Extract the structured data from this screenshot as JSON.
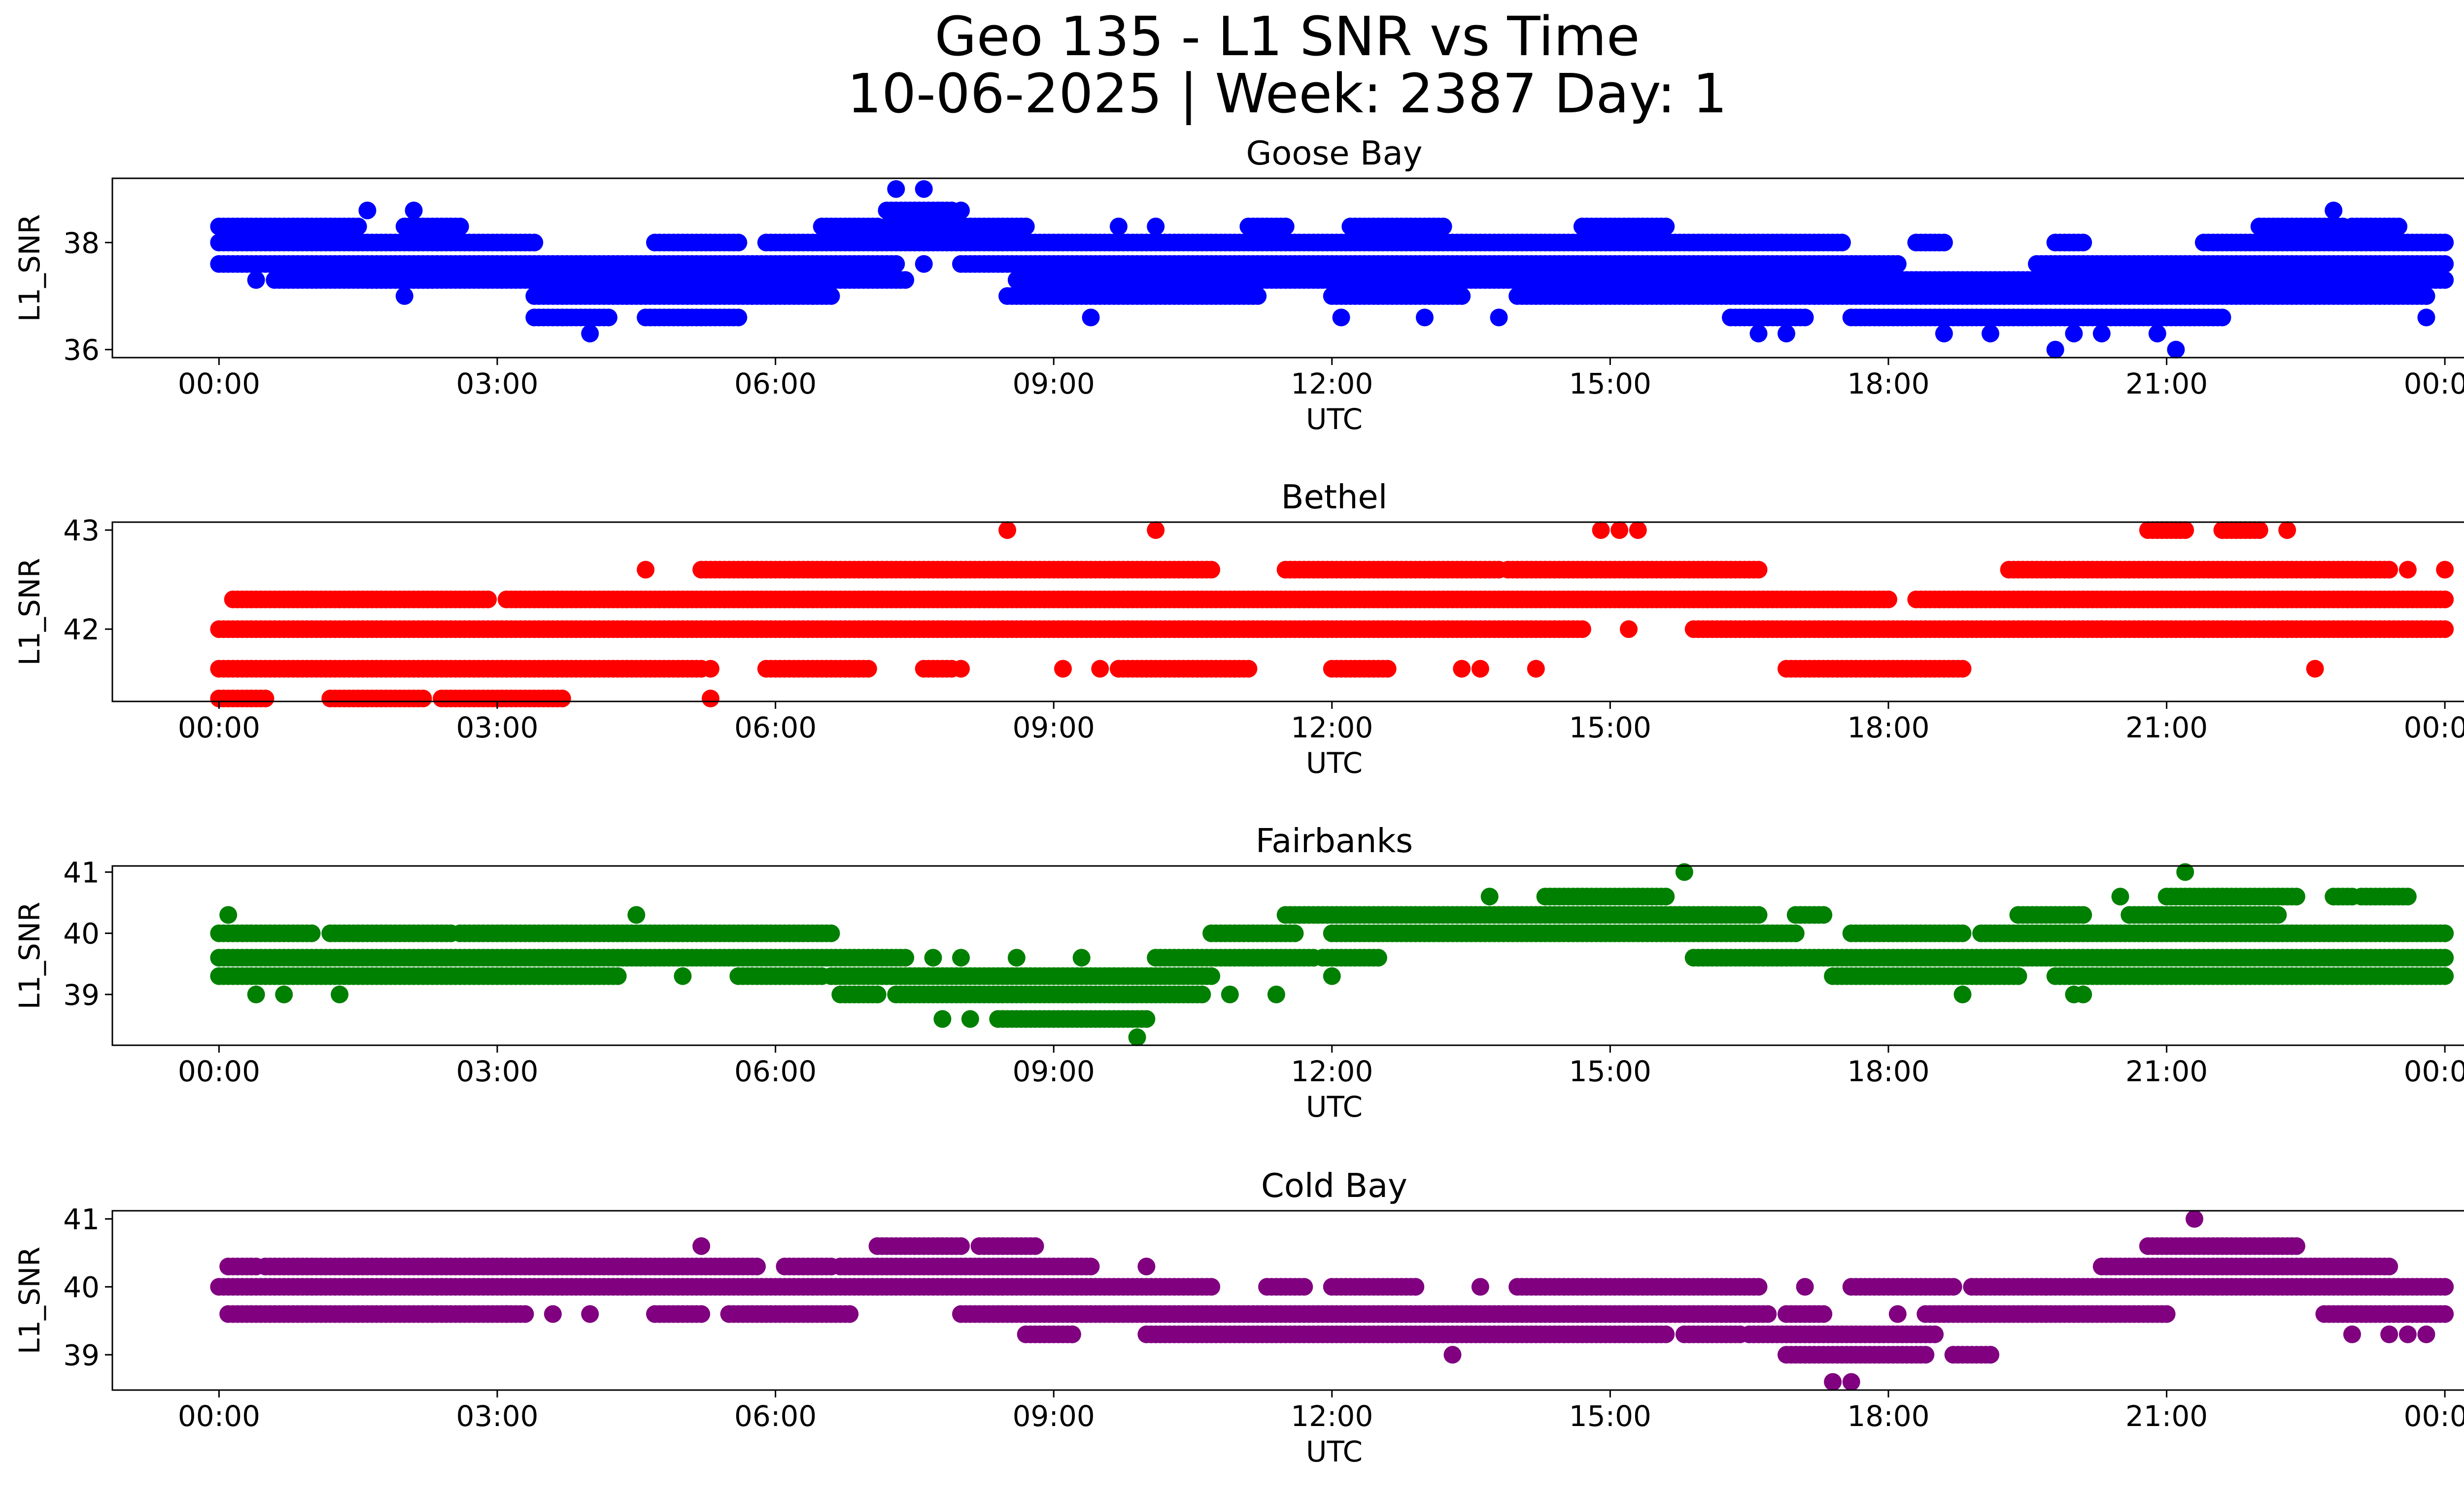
{
  "figure": {
    "title_line1": "Geo 135 - L1 SNR vs Time",
    "title_line2": "10-06-2025 | Week: 2387 Day: 1"
  },
  "chart_data": [
    {
      "type": "scatter",
      "title": "Goose Bay",
      "xlabel": "UTC",
      "ylabel": "L1_SNR",
      "color": "#0000ff",
      "xlim": [
        -1.15,
        25.2
      ],
      "ylim": [
        35.85,
        39.2
      ],
      "xticks": [
        "00:00",
        "03:00",
        "06:00",
        "09:00",
        "12:00",
        "15:00",
        "18:00",
        "21:00",
        "00:00"
      ],
      "yticks": [
        36,
        38
      ],
      "bands": [
        {
          "y": 38.0,
          "ranges": [
            [
              0,
              3.4
            ],
            [
              4.7,
              5.6
            ],
            [
              5.9,
              17.5
            ],
            [
              18.3,
              18.6
            ],
            [
              19.8,
              20.1
            ],
            [
              21.4,
              24
            ]
          ]
        },
        {
          "y": 37.6,
          "ranges": [
            [
              0,
              3.9
            ],
            [
              3.9,
              7.3
            ],
            [
              8.0,
              18.1
            ],
            [
              19.6,
              24
            ]
          ]
        },
        {
          "y": 37.3,
          "ranges": [
            [
              0.6,
              2.3
            ],
            [
              1.6,
              7.4
            ],
            [
              8.6,
              24
            ]
          ]
        },
        {
          "y": 37.0,
          "ranges": [
            [
              3.4,
              6.6
            ],
            [
              8.5,
              11.2
            ],
            [
              12.0,
              13.4
            ],
            [
              14.0,
              23.8
            ]
          ]
        },
        {
          "y": 36.6,
          "ranges": [
            [
              3.4,
              4.2
            ],
            [
              4.6,
              5.6
            ],
            [
              16.3,
              17.1
            ],
            [
              17.6,
              21.6
            ]
          ]
        },
        {
          "y": 38.3,
          "ranges": [
            [
              0,
              1.5
            ],
            [
              2.0,
              2.6
            ],
            [
              6.5,
              7.1
            ],
            [
              7.2,
              8.7
            ],
            [
              11.1,
              11.5
            ],
            [
              12.2,
              13.2
            ],
            [
              14.7,
              15.6
            ],
            [
              22.0,
              22.9
            ],
            [
              23.0,
              23.5
            ]
          ]
        },
        {
          "y": 38.6,
          "ranges": [
            [
              7.2,
              7.9
            ]
          ]
        }
      ],
      "points": [
        [
          1.6,
          38.6
        ],
        [
          2.1,
          38.6
        ],
        [
          7.3,
          39.0
        ],
        [
          7.6,
          39.0
        ],
        [
          8.0,
          38.6
        ],
        [
          22.8,
          38.6
        ],
        [
          0.4,
          37.3
        ],
        [
          2.0,
          37.0
        ],
        [
          4.0,
          36.3
        ],
        [
          6.6,
          37.3
        ],
        [
          7.6,
          37.6
        ],
        [
          9.4,
          36.6
        ],
        [
          10.1,
          38.3
        ],
        [
          9.7,
          38.3
        ],
        [
          12.1,
          36.6
        ],
        [
          13.0,
          36.6
        ],
        [
          13.8,
          36.6
        ],
        [
          16.6,
          36.3
        ],
        [
          16.9,
          36.3
        ],
        [
          18.6,
          36.3
        ],
        [
          19.1,
          36.3
        ],
        [
          19.8,
          36.0
        ],
        [
          20.0,
          36.3
        ],
        [
          20.3,
          36.3
        ],
        [
          20.9,
          36.3
        ],
        [
          21.1,
          36.0
        ],
        [
          23.8,
          36.6
        ],
        [
          23.8,
          37.0
        ]
      ]
    },
    {
      "type": "scatter",
      "title": "Bethel",
      "xlabel": "UTC",
      "ylabel": "L1_SNR",
      "color": "#ff0000",
      "xlim": [
        -1.15,
        25.2
      ],
      "ylim": [
        41.27,
        43.08
      ],
      "xticks": [
        "00:00",
        "03:00",
        "06:00",
        "09:00",
        "12:00",
        "15:00",
        "18:00",
        "21:00",
        "00:00"
      ],
      "yticks": [
        42,
        43
      ],
      "bands": [
        {
          "y": 42.0,
          "ranges": [
            [
              0,
              14.7
            ],
            [
              15.9,
              24
            ]
          ]
        },
        {
          "y": 42.3,
          "ranges": [
            [
              0.15,
              2.9
            ],
            [
              3.1,
              18.0
            ],
            [
              18.3,
              24
            ]
          ]
        },
        {
          "y": 42.6,
          "ranges": [
            [
              5.2,
              10.7
            ],
            [
              11.5,
              13.8
            ],
            [
              13.9,
              16.6
            ],
            [
              19.3,
              23.4
            ]
          ]
        },
        {
          "y": 41.6,
          "ranges": [
            [
              0,
              5.2
            ],
            [
              5.9,
              7.0
            ],
            [
              7.6,
              7.9
            ],
            [
              9.7,
              11.1
            ],
            [
              12.0,
              12.6
            ],
            [
              16.9,
              18.8
            ]
          ]
        },
        {
          "y": 41.3,
          "ranges": [
            [
              0,
              0.5
            ],
            [
              1.2,
              2.2
            ],
            [
              2.4,
              3.7
            ]
          ]
        },
        {
          "y": 43.0,
          "ranges": [
            [
              20.8,
              21.2
            ],
            [
              21.6,
              22.0
            ]
          ]
        }
      ],
      "points": [
        [
          8.5,
          43.0
        ],
        [
          10.1,
          43.0
        ],
        [
          14.9,
          43.0
        ],
        [
          15.1,
          43.0
        ],
        [
          15.3,
          43.0
        ],
        [
          22.3,
          43.0
        ],
        [
          4.6,
          42.6
        ],
        [
          23.6,
          42.6
        ],
        [
          24.0,
          42.6
        ],
        [
          5.3,
          41.3
        ],
        [
          5.3,
          41.6
        ],
        [
          8.0,
          41.6
        ],
        [
          9.1,
          41.6
        ],
        [
          9.5,
          41.6
        ],
        [
          13.4,
          41.6
        ],
        [
          14.2,
          41.6
        ],
        [
          13.6,
          41.6
        ],
        [
          22.6,
          41.6
        ],
        [
          15.2,
          42.0
        ],
        [
          20.3,
          42.0
        ],
        [
          21.4,
          42.0
        ],
        [
          22.3,
          42.0
        ]
      ]
    },
    {
      "type": "scatter",
      "title": "Fairbanks",
      "xlabel": "UTC",
      "ylabel": "L1_SNR",
      "color": "#008000",
      "xlim": [
        -1.15,
        25.2
      ],
      "ylim": [
        38.17,
        41.1
      ],
      "xticks": [
        "00:00",
        "03:00",
        "06:00",
        "09:00",
        "12:00",
        "15:00",
        "18:00",
        "21:00",
        "00:00"
      ],
      "yticks": [
        39,
        40,
        41
      ],
      "bands": [
        {
          "y": 40.0,
          "ranges": [
            [
              0,
              1.0
            ],
            [
              1.2,
              2.5
            ],
            [
              2.6,
              6.6
            ],
            [
              10.7,
              11.6
            ],
            [
              12.0,
              17.0
            ],
            [
              17.6,
              18.8
            ],
            [
              19.0,
              24
            ]
          ]
        },
        {
          "y": 39.6,
          "ranges": [
            [
              0,
              7.4
            ],
            [
              10.1,
              11.8
            ],
            [
              11.9,
              12.5
            ],
            [
              15.9,
              24
            ]
          ]
        },
        {
          "y": 39.3,
          "ranges": [
            [
              0,
              4.3
            ],
            [
              5.6,
              6.5
            ],
            [
              6.6,
              10.7
            ],
            [
              17.4,
              19.4
            ],
            [
              19.8,
              24
            ]
          ]
        },
        {
          "y": 40.3,
          "ranges": [
            [
              11.5,
              16.6
            ],
            [
              17.0,
              17.3
            ],
            [
              19.4,
              20.1
            ],
            [
              20.6,
              22.2
            ]
          ]
        },
        {
          "y": 40.6,
          "ranges": [
            [
              14.3,
              15.6
            ],
            [
              21.0,
              22.4
            ],
            [
              22.8,
              23.0
            ],
            [
              23.1,
              23.6
            ]
          ]
        },
        {
          "y": 39.0,
          "ranges": [
            [
              6.7,
              7.1
            ],
            [
              7.3,
              10.6
            ]
          ]
        },
        {
          "y": 38.6,
          "ranges": [
            [
              8.4,
              10.0
            ]
          ]
        }
      ],
      "points": [
        [
          0.1,
          40.3
        ],
        [
          4.5,
          40.3
        ],
        [
          15.8,
          41.0
        ],
        [
          21.2,
          41.0
        ],
        [
          0.4,
          39.0
        ],
        [
          0.7,
          39.0
        ],
        [
          1.3,
          39.0
        ],
        [
          5.0,
          39.3
        ],
        [
          7.8,
          38.6
        ],
        [
          8.1,
          38.6
        ],
        [
          9.9,
          38.3
        ],
        [
          10.9,
          39.0
        ],
        [
          11.4,
          39.0
        ],
        [
          12.0,
          39.3
        ],
        [
          13.7,
          40.6
        ],
        [
          18.8,
          39.0
        ],
        [
          20.0,
          39.0
        ],
        [
          20.1,
          39.0
        ],
        [
          20.5,
          40.6
        ],
        [
          7.7,
          39.6
        ],
        [
          8.0,
          39.6
        ],
        [
          8.6,
          39.6
        ],
        [
          9.3,
          39.6
        ]
      ]
    },
    {
      "type": "scatter",
      "title": "Cold Bay",
      "xlabel": "UTC",
      "ylabel": "L1_SNR",
      "color": "#800080",
      "xlim": [
        -1.15,
        25.2
      ],
      "ylim": [
        38.48,
        41.12
      ],
      "xticks": [
        "00:00",
        "03:00",
        "06:00",
        "09:00",
        "12:00",
        "15:00",
        "18:00",
        "21:00",
        "00:00"
      ],
      "yticks": [
        39,
        40,
        41
      ],
      "bands": [
        {
          "y": 40.0,
          "ranges": [
            [
              0,
              10.7
            ],
            [
              11.3,
              11.7
            ],
            [
              12.0,
              12.9
            ],
            [
              14.0,
              16.6
            ],
            [
              17.6,
              18.7
            ],
            [
              18.9,
              24
            ]
          ]
        },
        {
          "y": 40.3,
          "ranges": [
            [
              0.1,
              0.4
            ],
            [
              0.5,
              5.8
            ],
            [
              6.1,
              6.6
            ],
            [
              6.7,
              9.4
            ],
            [
              20.3,
              23.4
            ]
          ]
        },
        {
          "y": 39.6,
          "ranges": [
            [
              0.1,
              2.3
            ],
            [
              2.3,
              3.3
            ],
            [
              4.7,
              5.2
            ],
            [
              5.5,
              6.8
            ],
            [
              8.0,
              16.7
            ],
            [
              16.9,
              17.3
            ],
            [
              18.4,
              21.0
            ],
            [
              22.7,
              24
            ]
          ]
        },
        {
          "y": 39.3,
          "ranges": [
            [
              8.7,
              9.2
            ],
            [
              10.0,
              15.6
            ],
            [
              15.8,
              16.4
            ],
            [
              16.5,
              18.5
            ]
          ]
        },
        {
          "y": 39.0,
          "ranges": [
            [
              16.9,
              18.4
            ],
            [
              18.7,
              19.1
            ]
          ]
        },
        {
          "y": 40.6,
          "ranges": [
            [
              7.1,
              8.0
            ],
            [
              8.2,
              8.8
            ],
            [
              20.8,
              22.4
            ]
          ]
        }
      ],
      "points": [
        [
          5.2,
          40.6
        ],
        [
          10.0,
          40.3
        ],
        [
          21.3,
          41.0
        ],
        [
          13.3,
          39.0
        ],
        [
          17.4,
          38.6
        ],
        [
          17.6,
          38.6
        ],
        [
          3.1,
          39.6
        ],
        [
          3.6,
          39.6
        ],
        [
          4.0,
          39.6
        ],
        [
          9.2,
          39.3
        ],
        [
          15.5,
          39.3
        ],
        [
          19.1,
          39.0
        ],
        [
          23.0,
          39.3
        ],
        [
          23.4,
          39.3
        ],
        [
          23.6,
          39.3
        ],
        [
          23.4,
          40.0
        ],
        [
          23.8,
          39.3
        ],
        [
          18.1,
          39.6
        ],
        [
          12.9,
          40.0
        ],
        [
          13.6,
          40.0
        ],
        [
          17.1,
          40.0
        ],
        [
          19.7,
          40.0
        ]
      ]
    }
  ]
}
